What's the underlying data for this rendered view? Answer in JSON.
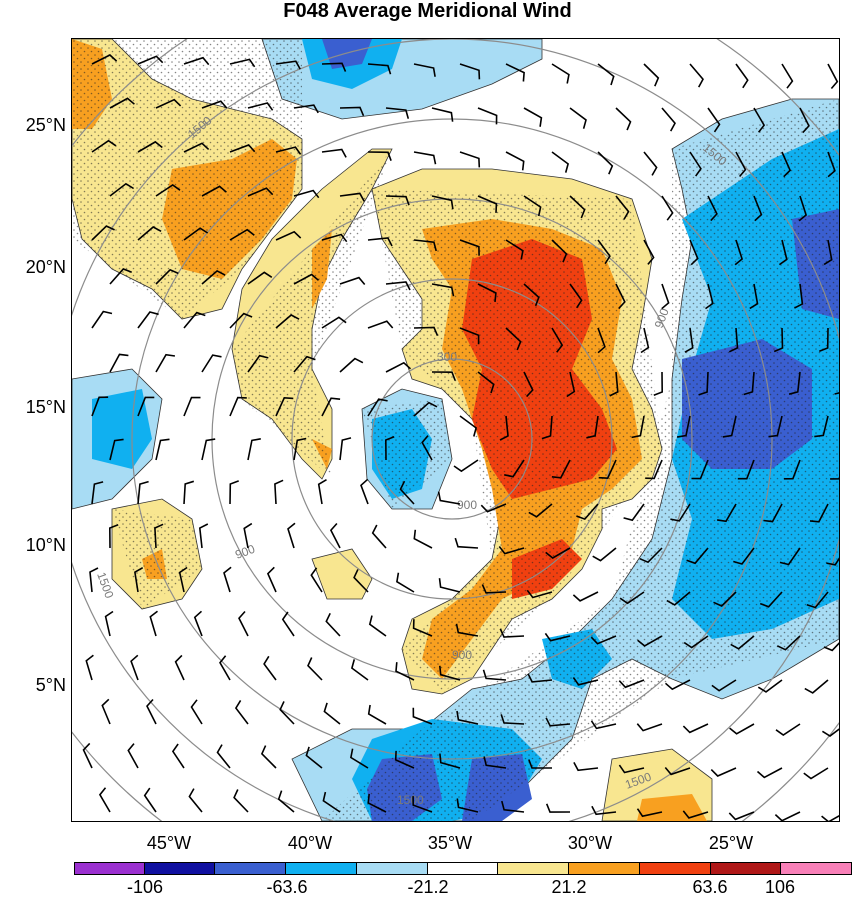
{
  "title": "F048 Average Meridional Wind",
  "lat_labels": [
    "25°N",
    "20°N",
    "15°N",
    "10°N",
    "5°N"
  ],
  "lon_labels": [
    "45°W",
    "40°W",
    "35°W",
    "30°W",
    "25°W"
  ],
  "range_ring_labels": [
    "300",
    "900",
    "900",
    "1500",
    "1500",
    "900",
    "1500",
    "1500",
    "900",
    "1500"
  ],
  "colorbar": {
    "colors": [
      "#9b30d0",
      "#1010a0",
      "#3a5fd0",
      "#10b0f0",
      "#a8dcf4",
      "#ffffff",
      "#f8e690",
      "#f8a020",
      "#f04010",
      "#b01818",
      "#f880b8"
    ],
    "labels": [
      "-106",
      "-63.6",
      "-21.2",
      "21.2",
      "63.6",
      "106"
    ]
  },
  "palette": {
    "dark_blue": "#3a5fd0",
    "blue": "#10b0f0",
    "light_blue": "#a8dcf4",
    "yellow": "#f8e690",
    "orange": "#f8a020",
    "red": "#f04010",
    "ring": "#8c8c8c"
  }
}
